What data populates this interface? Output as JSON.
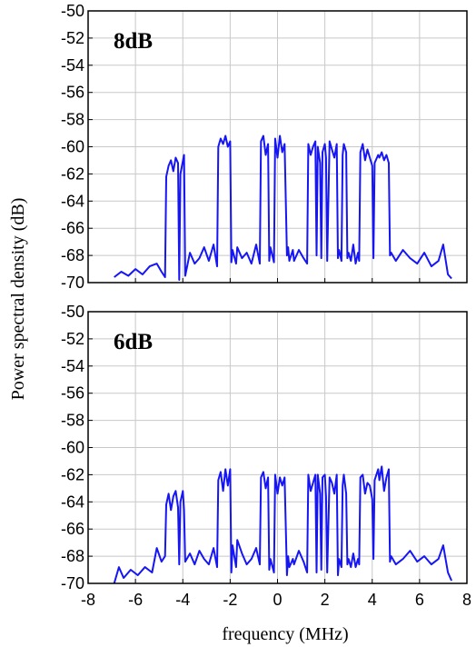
{
  "chart_data": [
    {
      "type": "line",
      "label": "8dB",
      "xlim": [
        -8,
        8
      ],
      "ylim": [
        -70,
        -50
      ],
      "grid": true,
      "color": "#1515f5",
      "x_ticks": [
        "-8",
        "-6",
        "-4",
        "-2",
        "0",
        "2",
        "4",
        "6",
        "8"
      ],
      "y_ticks": [
        "-50",
        "-52",
        "-54",
        "-56",
        "-58",
        "-60",
        "-62",
        "-64",
        "-66",
        "-68",
        "-70"
      ],
      "series": [
        {
          "x": [
            -6.9,
            -6.6,
            -6.3,
            -6.0,
            -5.7,
            -5.4,
            -5.1,
            -4.9,
            -4.75,
            -4.7,
            -4.6,
            -4.5,
            -4.4,
            -4.3,
            -4.2,
            -4.15,
            -4.1,
            -3.95,
            -3.9,
            -3.7,
            -3.5,
            -3.3,
            -3.1,
            -2.9,
            -2.7,
            -2.55,
            -2.5,
            -2.4,
            -2.3,
            -2.2,
            -2.1,
            -2.0,
            -1.95,
            -1.9,
            -1.75,
            -1.7,
            -1.5,
            -1.3,
            -1.1,
            -0.9,
            -0.75,
            -0.7,
            -0.6,
            -0.5,
            -0.4,
            -0.35,
            -0.3,
            -0.15,
            -0.1,
            0.0,
            0.1,
            0.2,
            0.3,
            0.4,
            0.45,
            0.5,
            0.65,
            0.7,
            0.9,
            1.1,
            1.25,
            1.3,
            1.4,
            1.5,
            1.6,
            1.65,
            1.7,
            1.8,
            1.85,
            1.9,
            2.0,
            2.05,
            2.1,
            2.2,
            2.3,
            2.4,
            2.5,
            2.55,
            2.6,
            2.7,
            2.75,
            2.8,
            2.9,
            2.95,
            3.0,
            3.1,
            3.2,
            3.3,
            3.4,
            3.45,
            3.5,
            3.6,
            3.7,
            3.8,
            3.9,
            4.0,
            4.05,
            4.1,
            4.25,
            4.3,
            4.4,
            4.5,
            4.6,
            4.7,
            4.75,
            4.8,
            5.0,
            5.3,
            5.6,
            5.9,
            6.2,
            6.5,
            6.8,
            7.0,
            7.2,
            7.35
          ],
          "y": [
            -69.6,
            -69.2,
            -69.5,
            -69.0,
            -69.4,
            -68.8,
            -68.6,
            -69.2,
            -69.6,
            -62.2,
            -61.4,
            -61.0,
            -61.8,
            -60.8,
            -61.2,
            -69.8,
            -62.0,
            -60.6,
            -69.5,
            -67.8,
            -68.6,
            -68.2,
            -67.4,
            -68.4,
            -67.2,
            -68.8,
            -60.0,
            -59.4,
            -59.8,
            -59.2,
            -60.0,
            -59.6,
            -68.5,
            -67.6,
            -68.6,
            -67.4,
            -68.2,
            -67.8,
            -68.6,
            -67.2,
            -68.6,
            -59.6,
            -59.2,
            -60.6,
            -59.8,
            -68.4,
            -67.4,
            -68.5,
            -59.4,
            -60.8,
            -59.2,
            -60.4,
            -59.8,
            -68.0,
            -67.4,
            -68.4,
            -67.6,
            -68.4,
            -67.6,
            -68.2,
            -68.6,
            -59.8,
            -60.6,
            -60.0,
            -59.6,
            -68.0,
            -60.0,
            -61.2,
            -68.2,
            -60.4,
            -59.8,
            -60.8,
            -68.4,
            -59.6,
            -60.2,
            -60.8,
            -59.8,
            -68.2,
            -67.6,
            -68.4,
            -60.6,
            -59.8,
            -60.4,
            -68.2,
            -67.8,
            -68.4,
            -67.2,
            -68.6,
            -67.8,
            -68.4,
            -60.4,
            -59.8,
            -61.0,
            -60.2,
            -60.8,
            -61.4,
            -68.2,
            -61.2,
            -60.6,
            -60.8,
            -60.4,
            -61.0,
            -60.6,
            -61.2,
            -68.0,
            -67.8,
            -68.4,
            -67.6,
            -68.2,
            -68.6,
            -67.8,
            -68.8,
            -68.4,
            -67.2,
            -69.4,
            -69.7
          ]
        }
      ]
    },
    {
      "type": "line",
      "label": "6dB",
      "xlim": [
        -8,
        8
      ],
      "ylim": [
        -70,
        -50
      ],
      "grid": true,
      "color": "#1515f5",
      "x_ticks": [
        "-8",
        "-6",
        "-4",
        "-2",
        "0",
        "2",
        "4",
        "6",
        "8"
      ],
      "y_ticks": [
        "-50",
        "-52",
        "-54",
        "-56",
        "-58",
        "-60",
        "-62",
        "-64",
        "-66",
        "-68",
        "-70"
      ],
      "series": [
        {
          "x": [
            -6.9,
            -6.7,
            -6.5,
            -6.2,
            -5.9,
            -5.6,
            -5.3,
            -5.1,
            -4.9,
            -4.75,
            -4.7,
            -4.6,
            -4.5,
            -4.4,
            -4.3,
            -4.2,
            -4.15,
            -4.1,
            -4.0,
            -3.95,
            -3.9,
            -3.7,
            -3.5,
            -3.3,
            -3.1,
            -2.9,
            -2.7,
            -2.55,
            -2.5,
            -2.4,
            -2.3,
            -2.2,
            -2.1,
            -2.0,
            -1.95,
            -1.9,
            -1.75,
            -1.7,
            -1.5,
            -1.3,
            -1.1,
            -0.9,
            -0.75,
            -0.7,
            -0.6,
            -0.5,
            -0.4,
            -0.35,
            -0.3,
            -0.15,
            -0.1,
            0.0,
            0.1,
            0.2,
            0.3,
            0.4,
            0.45,
            0.5,
            0.65,
            0.7,
            0.9,
            1.1,
            1.25,
            1.3,
            1.4,
            1.5,
            1.6,
            1.65,
            1.7,
            1.8,
            1.85,
            1.9,
            2.0,
            2.05,
            2.1,
            2.2,
            2.3,
            2.4,
            2.5,
            2.55,
            2.6,
            2.7,
            2.75,
            2.8,
            2.9,
            2.95,
            3.0,
            3.1,
            3.2,
            3.3,
            3.4,
            3.45,
            3.5,
            3.6,
            3.7,
            3.8,
            3.9,
            4.0,
            4.05,
            4.1,
            4.25,
            4.3,
            4.4,
            4.5,
            4.6,
            4.7,
            4.75,
            4.8,
            5.0,
            5.3,
            5.6,
            5.9,
            6.2,
            6.5,
            6.8,
            7.0,
            7.2,
            7.35
          ],
          "y": [
            -70.0,
            -68.8,
            -69.6,
            -69.0,
            -69.4,
            -68.8,
            -69.2,
            -67.4,
            -68.4,
            -68.0,
            -64.2,
            -63.4,
            -64.6,
            -63.6,
            -63.2,
            -64.4,
            -68.6,
            -64.0,
            -63.2,
            -64.6,
            -68.4,
            -67.8,
            -68.6,
            -67.6,
            -68.2,
            -68.6,
            -67.4,
            -68.8,
            -62.4,
            -61.8,
            -63.2,
            -61.6,
            -62.8,
            -61.6,
            -69.2,
            -67.2,
            -68.8,
            -66.8,
            -67.8,
            -68.6,
            -68.2,
            -67.4,
            -68.6,
            -62.2,
            -61.8,
            -63.0,
            -62.2,
            -69.0,
            -68.2,
            -69.2,
            -62.0,
            -63.4,
            -62.2,
            -62.8,
            -62.2,
            -69.4,
            -68.0,
            -68.8,
            -68.2,
            -68.6,
            -67.6,
            -68.4,
            -69.2,
            -62.0,
            -63.2,
            -62.6,
            -62.0,
            -69.2,
            -62.0,
            -63.4,
            -69.0,
            -62.2,
            -62.0,
            -63.6,
            -69.2,
            -62.2,
            -62.6,
            -63.4,
            -62.0,
            -69.4,
            -68.2,
            -68.8,
            -62.8,
            -62.0,
            -63.4,
            -68.6,
            -68.2,
            -68.8,
            -67.8,
            -68.8,
            -68.2,
            -68.6,
            -62.2,
            -62.0,
            -63.4,
            -62.6,
            -62.8,
            -63.8,
            -68.2,
            -62.4,
            -61.6,
            -62.4,
            -61.4,
            -63.2,
            -62.2,
            -61.6,
            -68.4,
            -68.0,
            -68.6,
            -68.2,
            -67.6,
            -68.4,
            -68.0,
            -68.6,
            -68.2,
            -67.2,
            -69.2,
            -69.8
          ]
        }
      ]
    }
  ],
  "shared_axes": {
    "xlabel": "frequency (MHz)",
    "ylabel": "Power spectral density (dB)"
  }
}
